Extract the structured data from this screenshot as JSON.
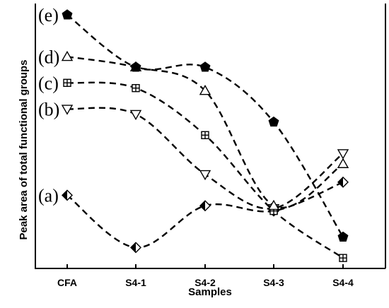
{
  "chart_data": {
    "type": "scatter",
    "title": "",
    "xlabel": "Samples",
    "ylabel": "Peak area of total functional groups",
    "categories": [
      "CFA",
      "S4-1",
      "S4-2",
      "S4-3",
      "S4-4"
    ],
    "y_ticks_shown": false,
    "smoothed_dashed_trend_lines": true,
    "series": [
      {
        "name": "(a)",
        "marker": "half-filled-diamond",
        "values": [
          0.28,
          0.08,
          0.24,
          0.22,
          0.33
        ]
      },
      {
        "name": "(b)",
        "marker": "open-down-triangle",
        "values": [
          0.61,
          0.59,
          0.36,
          0.23,
          0.44
        ]
      },
      {
        "name": "(c)",
        "marker": "boxed-plus-square",
        "values": [
          0.71,
          0.69,
          0.51,
          0.22,
          0.04
        ]
      },
      {
        "name": "(d)",
        "marker": "open-up-triangle",
        "values": [
          0.81,
          0.77,
          0.68,
          0.24,
          0.4
        ]
      },
      {
        "name": "(e)",
        "marker": "filled-pentagon",
        "values": [
          0.97,
          0.77,
          0.77,
          0.56,
          0.12
        ]
      }
    ]
  }
}
